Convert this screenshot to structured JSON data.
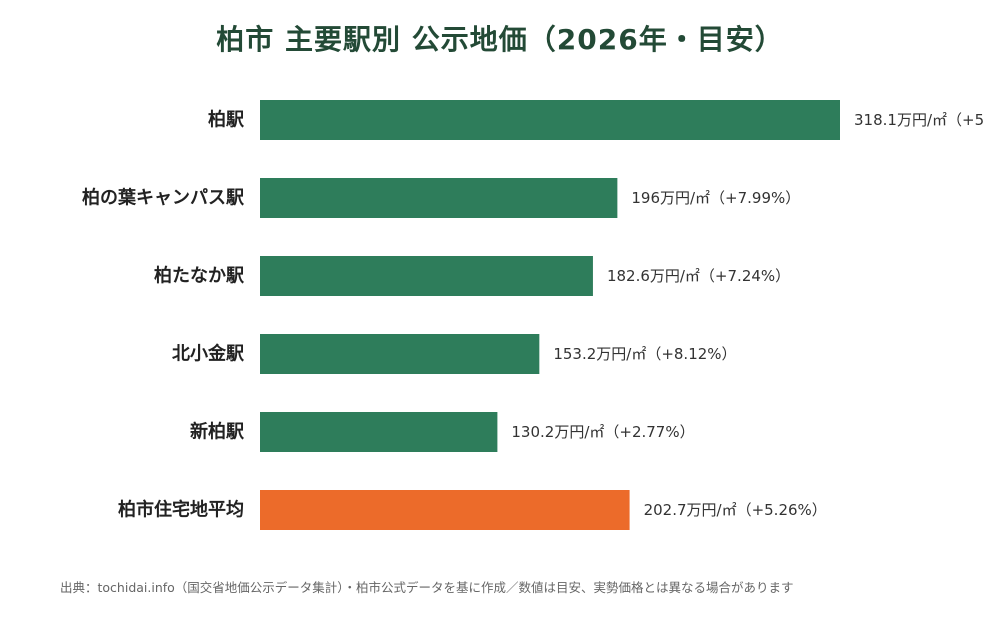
{
  "colors": {
    "title": "#234a36",
    "station_bar": "#2e7d5b",
    "average_bar": "#ec6b2a",
    "label": "#222222",
    "value_label": "#333333",
    "note": "#666666"
  },
  "chart_data": {
    "type": "bar",
    "orientation": "horizontal",
    "title": "柏市 主要駅別 公示地価（2026年・目安）",
    "xlabel": "",
    "ylabel": "",
    "unit": "万円/㎡",
    "xlim": [
      0,
      318.1
    ],
    "grid": false,
    "legend": "none",
    "categories": [
      "柏駅",
      "柏の葉キャンパス駅",
      "柏たなか駅",
      "北小金駅",
      "新柏駅",
      "柏市住宅地平均"
    ],
    "values": [
      318.1,
      196,
      182.6,
      153.2,
      130.2,
      202.7
    ],
    "highlight": [
      false,
      false,
      false,
      false,
      false,
      true
    ],
    "data_labels": [
      "318.1万円/㎡（+5",
      "196万円/㎡（+7.99%）",
      "182.6万円/㎡（+7.24%）",
      "153.2万円/㎡（+8.12%）",
      "130.2万円/㎡（+2.77%）",
      "202.7万円/㎡（+5.26%）"
    ]
  },
  "source_note": "出典：tochidai.info（国交省地価公示データ集計）・柏市公式データを基に作成／数値は目安、実勢価格とは異なる場合があります"
}
